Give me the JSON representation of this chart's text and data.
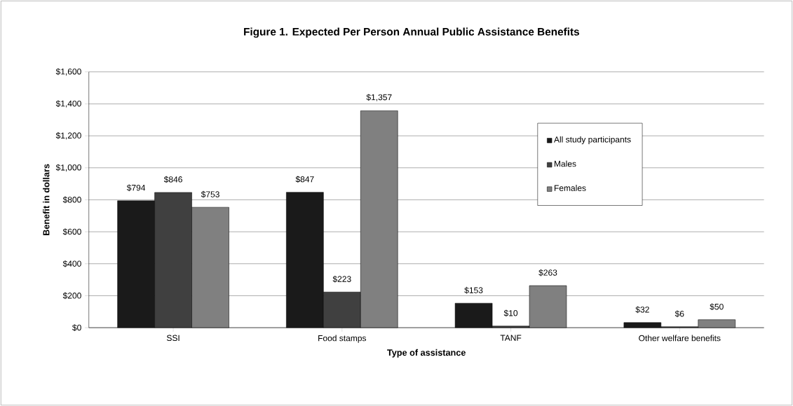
{
  "chart_data": {
    "type": "bar",
    "title": "Figure 1.  Expected Per Person Annual Public Assistance Benefits",
    "xlabel": "Type of assistance",
    "ylabel": "Benefit in dollars",
    "categories": [
      "SSI",
      "Food stamps",
      "TANF",
      "Other welfare benefits"
    ],
    "series": [
      {
        "name": "All study participants",
        "color": "#1a1a1a",
        "values": [
          794,
          847,
          153,
          32
        ],
        "value_labels": [
          "$794",
          "$847",
          "$153",
          "$32"
        ]
      },
      {
        "name": "Males",
        "color": "#404040",
        "values": [
          846,
          223,
          10,
          6
        ],
        "value_labels": [
          "$846",
          "$223",
          "$10",
          "$6"
        ]
      },
      {
        "name": "Females",
        "color": "#808080",
        "values": [
          753,
          1357,
          263,
          50
        ],
        "value_labels": [
          "$753",
          "$1,357",
          "$263",
          "$50"
        ]
      }
    ],
    "ylim": [
      0,
      1600
    ],
    "yticks": [
      {
        "value": 0,
        "label": "$0"
      },
      {
        "value": 200,
        "label": "$200"
      },
      {
        "value": 400,
        "label": "$400"
      },
      {
        "value": 600,
        "label": "$600"
      },
      {
        "value": 800,
        "label": "$800"
      },
      {
        "value": 1000,
        "label": "$1,000"
      },
      {
        "value": 1200,
        "label": "$1,200"
      },
      {
        "value": 1400,
        "label": "$1,400"
      },
      {
        "value": 1600,
        "label": "$1,600"
      }
    ],
    "grid": "y",
    "legend": "top right"
  }
}
